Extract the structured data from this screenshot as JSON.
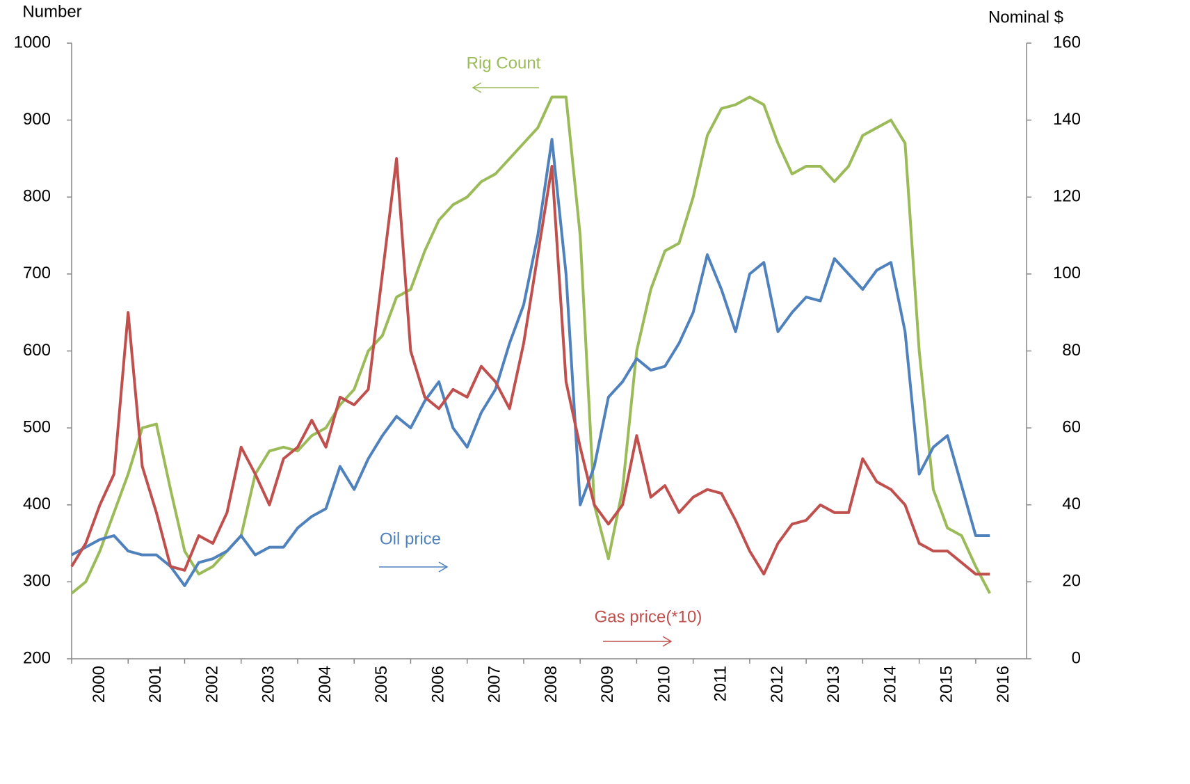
{
  "chart_data": {
    "type": "line",
    "ylabel": "Number",
    "y2label": "Nominal $",
    "x": [
      2000,
      2000.25,
      2000.5,
      2000.75,
      2001,
      2001.25,
      2001.5,
      2001.75,
      2002,
      2002.25,
      2002.5,
      2002.75,
      2003,
      2003.25,
      2003.5,
      2003.75,
      2004,
      2004.25,
      2004.5,
      2004.75,
      2005,
      2005.25,
      2005.5,
      2005.75,
      2006,
      2006.25,
      2006.5,
      2006.75,
      2007,
      2007.25,
      2007.5,
      2007.75,
      2008,
      2008.25,
      2008.5,
      2008.75,
      2009,
      2009.25,
      2009.5,
      2009.75,
      2010,
      2010.25,
      2010.5,
      2010.75,
      2011,
      2011.25,
      2011.5,
      2011.75,
      2012,
      2012.25,
      2012.5,
      2012.75,
      2013,
      2013.25,
      2013.5,
      2013.75,
      2014,
      2014.25,
      2014.5,
      2014.75,
      2015,
      2015.25,
      2015.5,
      2015.75,
      2016,
      2016.25
    ],
    "series": [
      {
        "name": "Rig Count",
        "color": "#9bbb59",
        "axis": "y",
        "values": [
          285,
          300,
          340,
          390,
          440,
          500,
          505,
          420,
          340,
          310,
          320,
          340,
          360,
          440,
          470,
          475,
          470,
          490,
          500,
          530,
          550,
          600,
          620,
          670,
          680,
          730,
          770,
          790,
          800,
          820,
          830,
          850,
          870,
          890,
          930,
          930,
          750,
          400,
          330,
          420,
          600,
          680,
          730,
          740,
          800,
          880,
          915,
          920,
          930,
          920,
          870,
          830,
          840,
          840,
          820,
          840,
          880,
          890,
          900,
          870,
          600,
          420,
          370,
          360,
          320,
          285
        ]
      },
      {
        "name": "Oil price",
        "color": "#4f81bd",
        "axis": "y2",
        "values": [
          27,
          29,
          31,
          32,
          28,
          27,
          27,
          24,
          19,
          25,
          26,
          28,
          32,
          27,
          29,
          29,
          34,
          37,
          39,
          50,
          44,
          52,
          58,
          63,
          60,
          67,
          72,
          60,
          55,
          64,
          70,
          82,
          92,
          110,
          135,
          100,
          40,
          50,
          68,
          72,
          78,
          75,
          76,
          82,
          90,
          105,
          96,
          85,
          100,
          103,
          85,
          90,
          94,
          93,
          104,
          100,
          96,
          101,
          103,
          85,
          48,
          55,
          58,
          45,
          32,
          32
        ]
      },
      {
        "name": "Gas price(*10)",
        "color": "#c0504d",
        "axis": "y2",
        "values": [
          24,
          30,
          40,
          48,
          90,
          50,
          38,
          24,
          23,
          32,
          30,
          38,
          55,
          48,
          40,
          52,
          55,
          62,
          55,
          68,
          66,
          70,
          100,
          130,
          80,
          68,
          65,
          70,
          68,
          76,
          72,
          65,
          82,
          105,
          128,
          72,
          55,
          40,
          35,
          40,
          58,
          42,
          45,
          38,
          42,
          44,
          43,
          36,
          28,
          22,
          30,
          35,
          36,
          40,
          38,
          38,
          52,
          46,
          44,
          40,
          30,
          28,
          28,
          25,
          22,
          22
        ]
      }
    ],
    "xlim": [
      2000,
      2016.9
    ],
    "xticks": [
      2000,
      2001,
      2002,
      2003,
      2004,
      2005,
      2006,
      2007,
      2008,
      2009,
      2010,
      2011,
      2012,
      2013,
      2014,
      2015,
      2016
    ],
    "ylim": [
      200,
      1000
    ],
    "yticks": [
      200,
      300,
      400,
      500,
      600,
      700,
      800,
      900,
      1000
    ],
    "y2lim": [
      0,
      160
    ],
    "y2ticks": [
      0,
      20,
      40,
      60,
      80,
      100,
      120,
      140,
      160
    ]
  }
}
